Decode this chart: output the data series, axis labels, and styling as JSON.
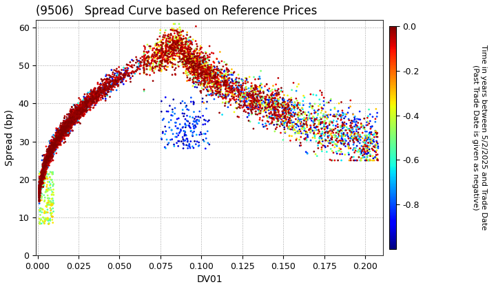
{
  "title": "(9506)   Spread Curve based on Reference Prices",
  "xlabel": "DV01",
  "ylabel": "Spread (bp)",
  "xlim": [
    -0.001,
    0.211
  ],
  "ylim": [
    0,
    62
  ],
  "colorbar_label": "Time in years between 5/2/2025 and Trade Date\n(Past Trade Date is given as negative)",
  "colorbar_ticks": [
    0.0,
    -0.2,
    -0.4,
    -0.6,
    -0.8
  ],
  "color_vmin": -1.0,
  "color_vmax": 0.0,
  "grid_color": "#888888",
  "background_color": "#ffffff",
  "title_fontsize": 12,
  "axis_fontsize": 10,
  "tick_fontsize": 9,
  "marker_size": 4
}
